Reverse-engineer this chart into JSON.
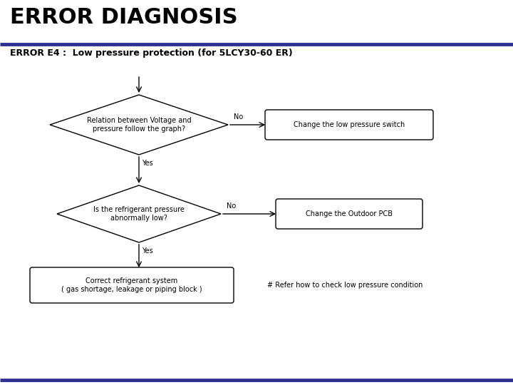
{
  "title": "ERROR DIAGNOSIS",
  "subtitle": "ERROR E4 :  Low pressure protection (for 5LCY30-60 ER)",
  "title_color": "#000000",
  "title_fontsize": 22,
  "subtitle_fontsize": 9,
  "divider_color": "#2e3192",
  "bg_color": "#ffffff",
  "diamond1_text": "Relation between Voltage and\npressure follow the graph?",
  "diamond2_text": "Is the refrigerant pressure\nabnormally low?",
  "box1_text": "Change the low pressure switch",
  "box2_text": "Change the Outdoor PCB",
  "box3_text": "Correct refrigerant system\n( gas shortage, leakage or piping block )",
  "note_text": "# Refer how to check low pressure condition",
  "yes_label": "Yes",
  "no_label": "No",
  "flow_color": "#000000",
  "shape_linewidth": 1.0,
  "text_fontsize": 7,
  "label_fontsize": 7
}
